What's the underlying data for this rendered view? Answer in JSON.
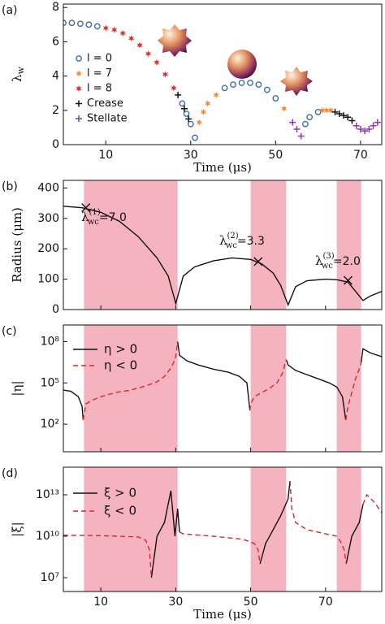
{
  "chart_data": [
    {
      "type": "scatter",
      "panel_label": "(a)",
      "ylabel": "λ",
      "ylabel_sub": "w",
      "xlabel": "Time (μs)",
      "show_xticklabels": true,
      "xlim": [
        0,
        75
      ],
      "xticks": [
        10,
        30,
        50,
        70
      ],
      "ylim": [
        0,
        8.2
      ],
      "yticks": [
        0,
        2,
        4,
        6,
        8
      ],
      "log_y": false,
      "legend": "center left",
      "series": [
        {
          "name": "l = 0",
          "marker": "circle",
          "color": "#3b6db5",
          "x": [
            0,
            2,
            4,
            6,
            8,
            28,
            29,
            30,
            31,
            38,
            40,
            42,
            44,
            46,
            48,
            50,
            57,
            58,
            60
          ],
          "values": [
            7.1,
            7.1,
            7.05,
            7.0,
            6.9,
            2.4,
            1.8,
            1.2,
            0.4,
            3.3,
            3.5,
            3.6,
            3.6,
            3.5,
            3.2,
            2.7,
            1.2,
            1.6,
            1.9
          ]
        },
        {
          "name": "l = 7",
          "marker": "star",
          "color": "#f08a3c",
          "x": [
            32,
            33,
            34,
            36,
            52,
            61,
            62,
            63
          ],
          "values": [
            1.3,
            1.9,
            2.4,
            2.9,
            2.1,
            2.0,
            2.0,
            2.0
          ]
        },
        {
          "name": "l = 8",
          "marker": "star",
          "color": "#d9342b",
          "x": [
            10,
            12,
            14,
            16,
            18,
            20,
            22,
            24,
            26
          ],
          "values": [
            6.8,
            6.7,
            6.5,
            6.2,
            5.8,
            5.3,
            4.8,
            4.1,
            3.3
          ]
        },
        {
          "name": "Crease",
          "marker": "plus",
          "color": "#111111",
          "x": [
            27,
            28.5,
            29.5,
            64,
            65,
            66,
            67,
            68
          ],
          "values": [
            2.9,
            2.1,
            1.5,
            1.9,
            1.8,
            1.7,
            1.6,
            1.4
          ]
        },
        {
          "name": "Stellate",
          "marker": "plus",
          "color": "#8a3aa8",
          "x": [
            54,
            55,
            56,
            69,
            70,
            71,
            72,
            73,
            74
          ],
          "values": [
            1.3,
            0.9,
            0.5,
            1.1,
            0.9,
            0.8,
            0.9,
            1.1,
            1.3
          ]
        }
      ]
    },
    {
      "type": "line",
      "panel_label": "(b)",
      "ylabel": "Radius (μm)",
      "show_xticklabels": false,
      "xlim": [
        0,
        85
      ],
      "xticks": [
        10,
        30,
        50,
        70
      ],
      "ylim": [
        0,
        425
      ],
      "yticks": [
        0,
        100,
        200,
        300,
        400
      ],
      "log_y": false,
      "shaded": [
        [
          5.5,
          30.5
        ],
        [
          50,
          59.5
        ],
        [
          73,
          79.5
        ]
      ],
      "series": [
        {
          "style": "solid",
          "color": "#111111",
          "x": [
            0,
            5,
            10,
            15,
            20,
            25,
            28,
            30,
            32,
            35,
            40,
            45,
            50,
            53,
            56,
            58,
            60,
            62,
            65,
            70,
            73,
            76,
            78,
            80,
            82,
            85
          ],
          "values": [
            340,
            335,
            320,
            290,
            240,
            170,
            110,
            20,
            110,
            140,
            160,
            170,
            165,
            150,
            120,
            80,
            15,
            75,
            95,
            100,
            98,
            90,
            60,
            30,
            45,
            60
          ]
        },
        {
          "marker": "x",
          "color": "#111111",
          "x": [
            6,
            52,
            76
          ],
          "values": [
            335,
            158,
            96
          ]
        }
      ],
      "annotations": [
        {
          "symbol": "λ",
          "sub": "wc",
          "sup": "(1)",
          "text": "=7.0"
        },
        {
          "symbol": "λ",
          "sub": "wc",
          "sup": "(2)",
          "text": "=3.3"
        },
        {
          "symbol": "λ",
          "sub": "wc",
          "sup": "(3)",
          "text": "=2.0"
        }
      ]
    },
    {
      "type": "line",
      "panel_label": "(c)",
      "ylabel": "|η|",
      "show_xticklabels": false,
      "xlim": [
        0,
        85
      ],
      "xticks": [
        10,
        30,
        50,
        70
      ],
      "ylim": [
        1,
        1600000000
      ],
      "log_y": true,
      "yticks": [
        {
          "value": 100,
          "label": "10²"
        },
        {
          "value": 100000,
          "label": "10⁵"
        },
        {
          "value": 100000000,
          "label": "10⁸"
        }
      ],
      "shaded": [
        [
          5.5,
          30.5
        ],
        [
          50,
          59.5
        ],
        [
          73,
          79.5
        ]
      ],
      "legend": "upper left",
      "series": [
        {
          "name": "η > 0",
          "style": "solid",
          "color": "#111111",
          "x": [
            0,
            2,
            4,
            5,
            5.3,
            18,
            30.5,
            31,
            33,
            36,
            40,
            44,
            47,
            49,
            49.8,
            55,
            59.5,
            60,
            62,
            65,
            68,
            71,
            73,
            74.5,
            75.4,
            77,
            79.5,
            80,
            82,
            85
          ],
          "values": [
            30000,
            25000,
            10000,
            2000,
            200,
            null,
            100000000,
            10000000,
            4000000,
            2000000,
            1000000,
            600000,
            300000,
            100000,
            1000,
            null,
            5000000,
            2000000,
            800000,
            400000,
            200000,
            100000,
            50000,
            10000,
            200,
            null,
            3000000,
            30000000,
            15000000,
            8000000
          ]
        },
        {
          "name": "η < 0",
          "style": "dashed",
          "color": "#d62728",
          "x": [
            5.3,
            6,
            8,
            10,
            14,
            18,
            22,
            25,
            27,
            29,
            30,
            30.5,
            40,
            49.8,
            50,
            51,
            53,
            55,
            57,
            58.5,
            59.5,
            70,
            75.4,
            76,
            77,
            78,
            79,
            79.5
          ],
          "values": [
            200,
            3000,
            6000,
            10000,
            20000,
            30000,
            60000,
            120000,
            300000,
            1500000,
            8000000,
            100000000,
            null,
            1000,
            3000,
            10000,
            20000,
            40000,
            100000,
            500000,
            5000000,
            null,
            200,
            2000,
            20000,
            200000,
            1000000,
            3000000
          ]
        }
      ]
    },
    {
      "type": "line",
      "panel_label": "(d)",
      "ylabel": "|ξ|",
      "xlabel": "Time (μs)",
      "show_xticklabels": true,
      "xlim": [
        0,
        85
      ],
      "xticks": [
        10,
        30,
        50,
        70
      ],
      "ylim": [
        1000000,
        1000000000000000
      ],
      "log_y": true,
      "yticks": [
        {
          "value": 10000000,
          "label": "10⁷"
        },
        {
          "value": 10000000000,
          "label": "10¹⁰"
        },
        {
          "value": 10000000000000,
          "label": "10¹³"
        }
      ],
      "shaded": [
        [
          5.5,
          30.5
        ],
        [
          50,
          59.5
        ],
        [
          73,
          79.5
        ]
      ],
      "legend": "upper left",
      "series": [
        {
          "name": "ξ > 0",
          "style": "solid",
          "color": "#111111",
          "x": [
            23.5,
            25,
            27,
            28.7,
            29.8,
            30.5,
            31,
            40,
            52.5,
            54,
            56,
            58,
            60,
            60.5,
            70,
            75.5,
            77,
            79,
            80
          ],
          "values": [
            10000000,
            10000000000,
            100000000000,
            20000000000000,
            10000000000,
            1000000000000,
            20000000000,
            null,
            100000000,
            3000000000,
            30000000000,
            300000000000,
            5000000000000,
            100000000000000,
            null,
            100000000,
            10000000000,
            100000000000,
            2000000000000
          ]
        },
        {
          "name": "ξ < 0",
          "style": "dashed",
          "color": "#d62728",
          "x": [
            0,
            10,
            20,
            22,
            23,
            23.5,
            27,
            31,
            32,
            40,
            48,
            51,
            52,
            52.5,
            56,
            60.5,
            61,
            62,
            65,
            70,
            73,
            74,
            75,
            75.5,
            78,
            80,
            81,
            83,
            85
          ],
          "values": [
            12000000000,
            11000000000,
            9000000000,
            5000000000,
            1000000000,
            10000000,
            null,
            20000000000,
            15000000000,
            10000000000,
            6000000000,
            3000000000,
            1000000000,
            100000000,
            null,
            100000000000000,
            1000000000000,
            100000000000,
            30000000000,
            15000000000,
            10000000000,
            4000000000,
            1000000000,
            100000000,
            null,
            2000000000000,
            10000000000000,
            3000000000000,
            500000000000
          ]
        }
      ]
    }
  ]
}
